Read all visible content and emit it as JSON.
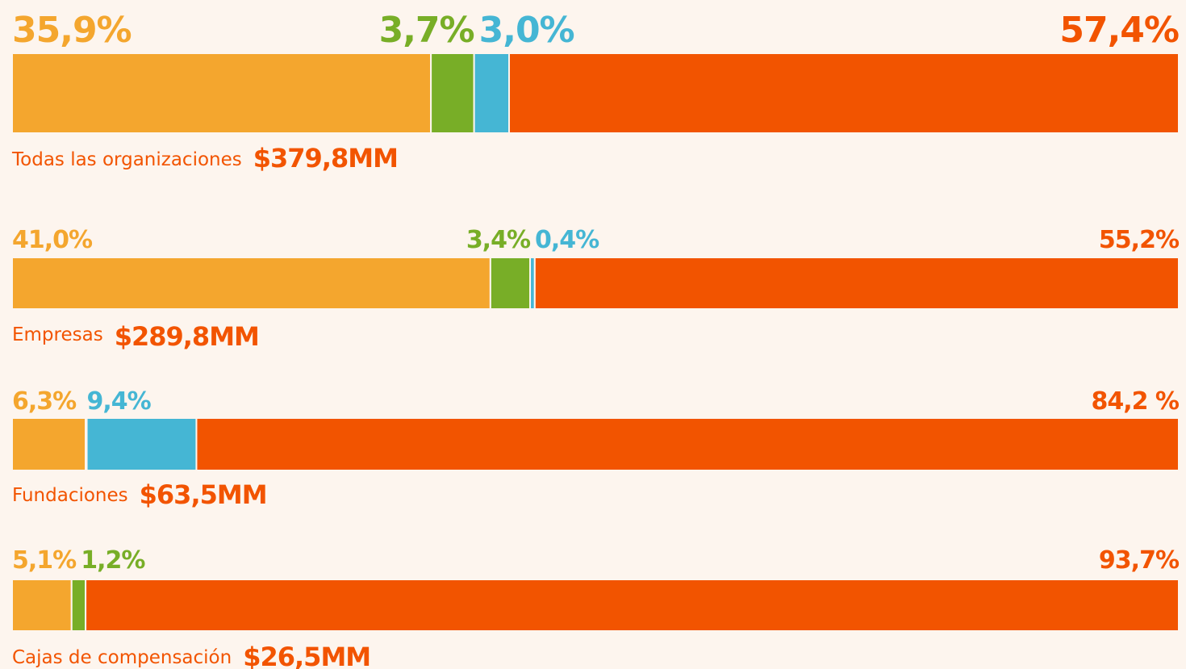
{
  "chart_data": {
    "type": "stacked-bar-100",
    "categories": [
      "Todas las organizaciones",
      "Empresas",
      "Fundaciones",
      "Cajas de compensación"
    ],
    "total_labels": [
      "$379,8MM",
      "$289,8MM",
      "$63,5MM",
      "$26,5MM"
    ],
    "xlim": [
      0,
      100
    ],
    "series": [
      {
        "color": "#f4a62e",
        "values": [
          35.9,
          41.0,
          6.3,
          5.1
        ],
        "value_labels": [
          "35,9%",
          "41,0%",
          "6,3%",
          "5,1%"
        ]
      },
      {
        "color": "#78ae27",
        "values": [
          3.7,
          3.4,
          0.1,
          1.2
        ],
        "value_labels": [
          "3,7%",
          "3,4%",
          null,
          "1,2%"
        ]
      },
      {
        "color": "#45b6d4",
        "values": [
          3.0,
          0.4,
          9.4,
          0
        ],
        "value_labels": [
          "3,0%",
          "0,4%",
          "9,4%",
          null
        ]
      },
      {
        "color": "#f25400",
        "values": [
          57.4,
          55.2,
          84.2,
          93.7
        ],
        "value_labels": [
          "57,4%",
          "55,2%",
          "84,2 %",
          "93,7%"
        ]
      }
    ]
  }
}
